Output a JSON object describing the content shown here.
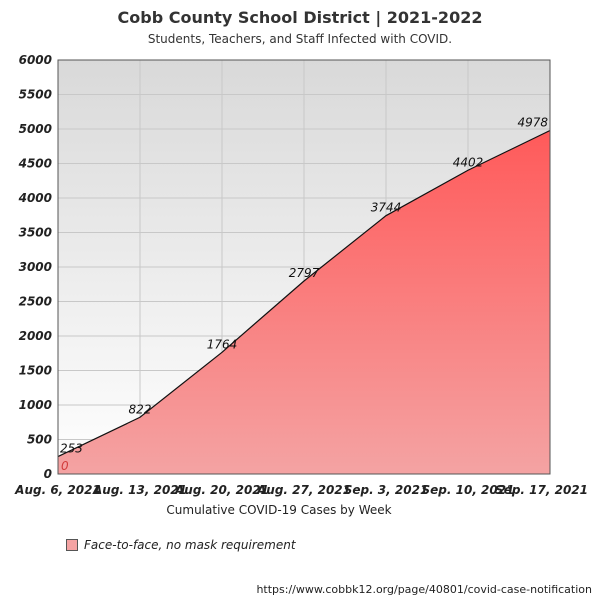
{
  "title": "Cobb County School District | 2021-2022",
  "subtitle": "Students, Teachers, and Staff Infected with COVID.",
  "source_url": "https://www.cobbk12.org/page/40801/covid-case-notification",
  "colors": {
    "area_top": "#ff5a5a",
    "area_bottom": "#f4a3a3",
    "plot_bg_top": "#d9d9d9",
    "plot_bg_bottom": "#ffffff",
    "line": "#111111"
  },
  "chart_data": {
    "type": "area",
    "title": "Cobb County School District | 2021-2022",
    "subtitle": "Students, Teachers, and Staff Infected with COVID.",
    "xlabel": "Cumulative COVID-19 Cases by Week",
    "ylabel": "",
    "categories": [
      "Aug. 6, 2021",
      "Aug. 13, 2021",
      "Aug. 20, 2021",
      "Aug. 27, 2021",
      "Sep. 3, 2021",
      "Sep. 10, 2021",
      "Sep. 17, 2021"
    ],
    "series": [
      {
        "name": "Face-to-face, no mask requirement",
        "values": [
          253,
          822,
          1764,
          2797,
          3744,
          4402,
          4978
        ]
      }
    ],
    "baseline_label": "0",
    "ylim": [
      0,
      6000
    ],
    "yticks": [
      0,
      500,
      1000,
      1500,
      2000,
      2500,
      3000,
      3500,
      4000,
      4500,
      5000,
      5500,
      6000
    ],
    "grid": true,
    "legend_position": "bottom-left"
  }
}
